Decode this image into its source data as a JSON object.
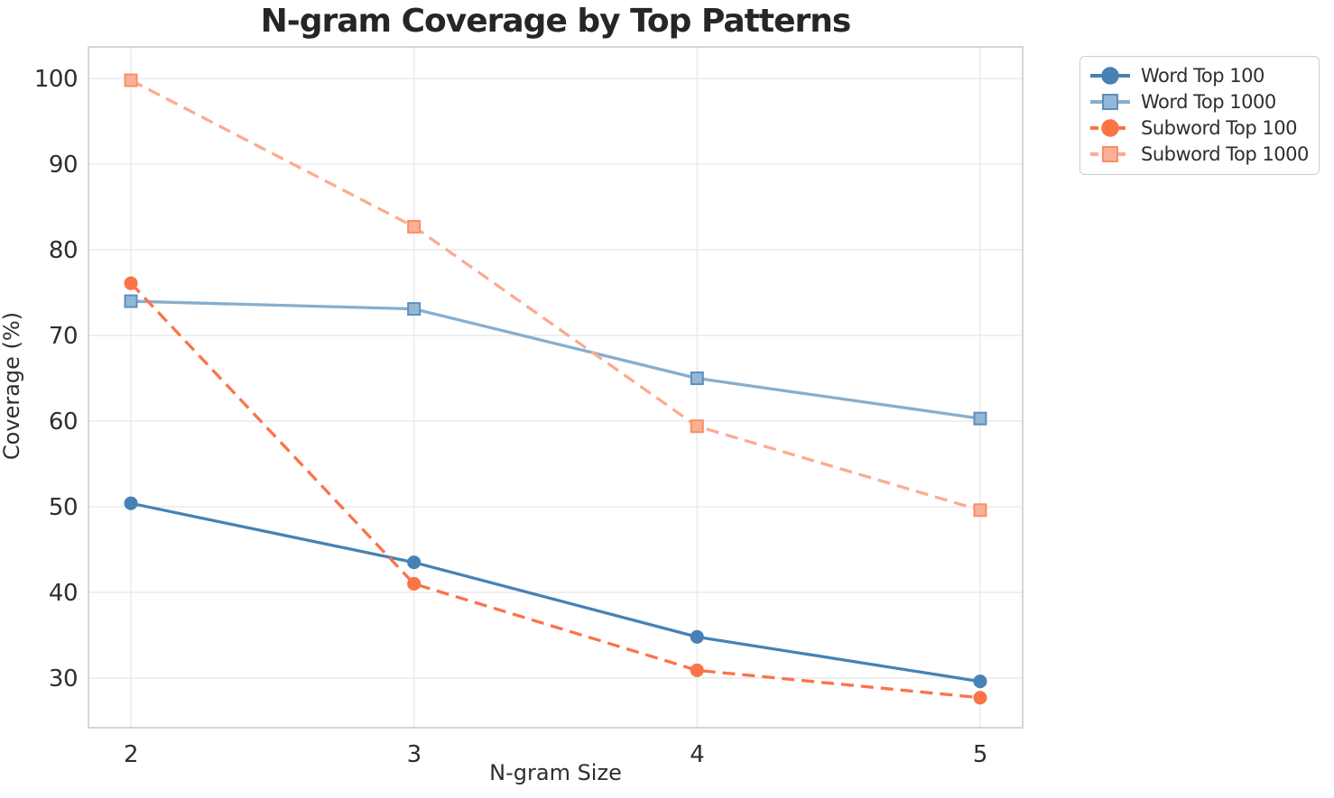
{
  "title": "N-gram Coverage by Top Patterns",
  "chart_data": {
    "type": "line",
    "title": "N-gram Coverage by Top Patterns",
    "xlabel": "N-gram Size",
    "ylabel": "Coverage (%)",
    "x": [
      2,
      3,
      4,
      5
    ],
    "xticks": [
      "2",
      "3",
      "4",
      "5"
    ],
    "yticks": [
      30,
      40,
      50,
      60,
      70,
      80,
      90,
      100
    ],
    "xlim": [
      1.85,
      5.15
    ],
    "ylim": [
      24.2,
      103.7
    ],
    "grid": true,
    "legend_position": "outside-upper-right",
    "series": [
      {
        "name": "Word Top 100",
        "values": [
          50.4,
          43.5,
          34.8,
          29.6
        ],
        "color": "#4682B4",
        "line_style": "solid",
        "marker": "circle",
        "marker_fill": "#4682B4",
        "marker_edge": "#4682B4"
      },
      {
        "name": "Word Top 1000",
        "values": [
          74.0,
          73.1,
          65.0,
          60.3
        ],
        "color": "#87AECE",
        "line_style": "solid",
        "marker": "square",
        "marker_fill": "#93B7D7",
        "marker_edge": "#5E8FBE"
      },
      {
        "name": "Subword Top 100",
        "values": [
          76.1,
          41.0,
          30.9,
          27.7
        ],
        "color": "#FB7348",
        "line_style": "dashed",
        "marker": "circle",
        "marker_fill": "#FB7348",
        "marker_edge": "#FB7348"
      },
      {
        "name": "Subword Top 1000",
        "values": [
          99.8,
          82.7,
          59.4,
          49.6
        ],
        "color": "#FCAB91",
        "line_style": "dashed",
        "marker": "square",
        "marker_fill": "#FBB096",
        "marker_edge": "#F98E64"
      }
    ]
  },
  "style": {
    "grid_color": "#e8e8e8",
    "spine_color": "#cccccc",
    "tick_color": "#2e2e2e",
    "title_color": "#262626",
    "background": "#ffffff",
    "line_width": 3.3,
    "dash_pattern": "14 8"
  }
}
